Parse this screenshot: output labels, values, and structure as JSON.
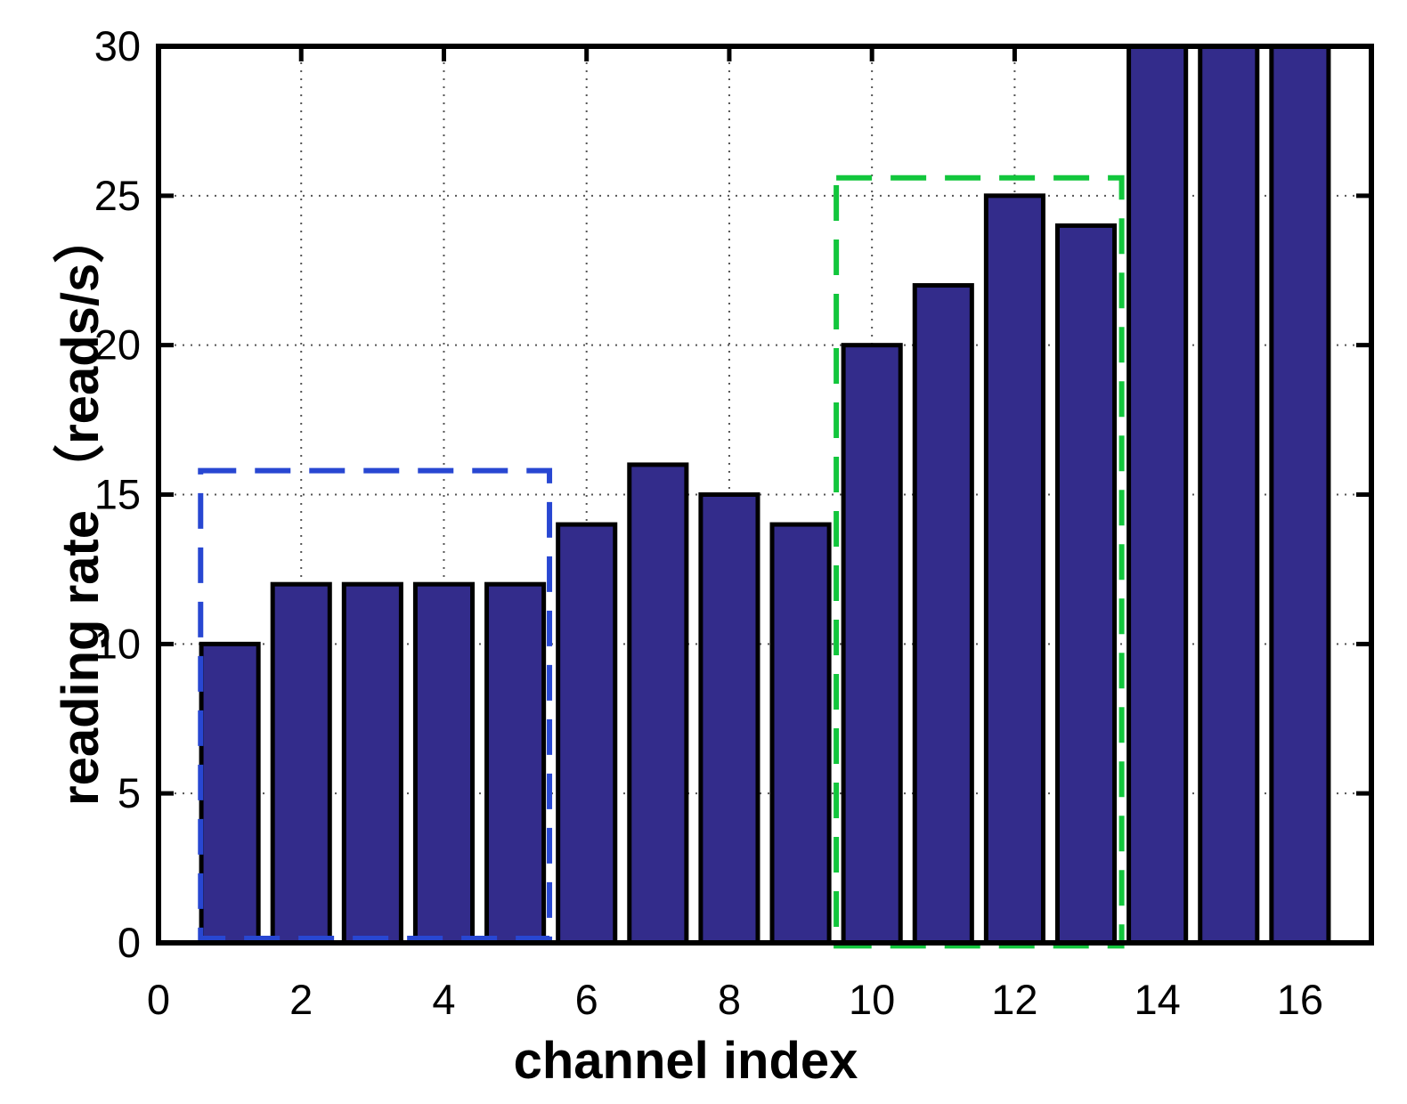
{
  "chart_data": {
    "type": "bar",
    "title": "",
    "xlabel": "channel index",
    "ylabel": "reading rate （reads/s）",
    "categories": [
      1,
      2,
      3,
      4,
      5,
      6,
      7,
      8,
      9,
      10,
      11,
      12,
      13,
      14,
      15,
      16
    ],
    "values": [
      10,
      12,
      12,
      12,
      12,
      14,
      16,
      15,
      14,
      20,
      22,
      25,
      24,
      30,
      30,
      30
    ],
    "clipped_at_top_channels": [
      14,
      15,
      16
    ],
    "bar_width_units": 0.8,
    "xlim": [
      0,
      17
    ],
    "ylim": [
      0,
      30
    ],
    "xticks": [
      0,
      2,
      4,
      6,
      8,
      10,
      12,
      14,
      16
    ],
    "yticks": [
      0,
      5,
      10,
      15,
      20,
      25,
      30
    ],
    "grid": "dotted on both axes, box on, inward ticks on all four sides",
    "legend": "none",
    "colors": {
      "bar_fill": "#332C8B",
      "bar_edge": "#000000",
      "axis": "#000000",
      "gridline": "#555555",
      "annotation_blue": "#2847D2",
      "annotation_green": "#12C63C"
    },
    "annotations": [
      {
        "name": "blue-dashed-box",
        "color": "#2847D2",
        "x0": 0.59,
        "x1": 5.48,
        "y0": 0.15,
        "y1": 15.8
      },
      {
        "name": "green-dashed-box",
        "color": "#12C63C",
        "x0": 9.5,
        "x1": 13.5,
        "y0": -0.1,
        "y1": 25.6
      }
    ]
  }
}
